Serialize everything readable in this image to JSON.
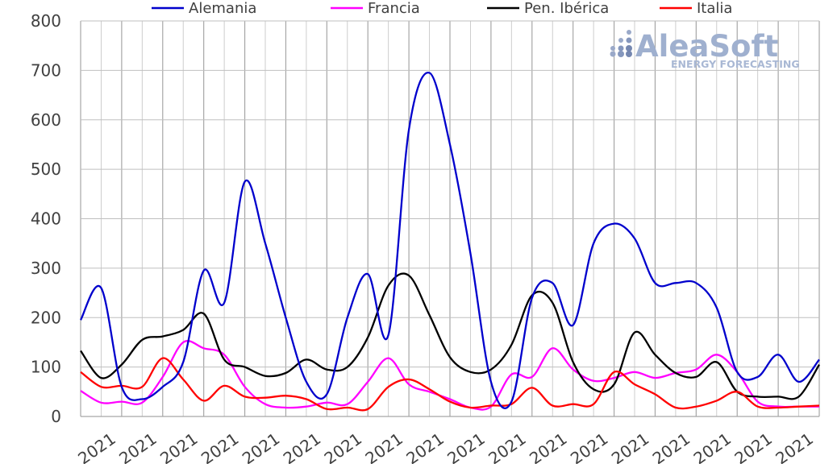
{
  "chart_data": {
    "type": "line",
    "title": "",
    "xlabel": "",
    "ylabel": "",
    "ylim": [
      0,
      800
    ],
    "yticks": [
      0,
      100,
      200,
      300,
      400,
      500,
      600,
      700,
      800
    ],
    "grid": true,
    "legend_position": "top",
    "x_tick_labels": [
      "2021",
      "2021",
      "2021",
      "2021",
      "2021",
      "2021",
      "2021",
      "2021",
      "2021",
      "2021",
      "2021",
      "2021",
      "2021",
      "2021",
      "2021",
      "2021",
      "2021",
      "2021"
    ],
    "series": [
      {
        "name": "Alemania",
        "color": "#0000cc",
        "values": [
          195,
          260,
          60,
          35,
          60,
          110,
          295,
          230,
          475,
          350,
          200,
          70,
          45,
          200,
          288,
          165,
          580,
          695,
          550,
          330,
          70,
          30,
          240,
          270,
          185,
          350,
          390,
          360,
          270,
          270,
          270,
          220,
          90,
          80,
          125,
          70,
          115
        ]
      },
      {
        "name": "Francia",
        "color": "#ff00ff",
        "values": [
          52,
          28,
          30,
          28,
          80,
          150,
          138,
          125,
          60,
          25,
          18,
          20,
          28,
          25,
          70,
          118,
          65,
          50,
          35,
          18,
          20,
          85,
          80,
          138,
          95,
          72,
          78,
          90,
          78,
          88,
          95,
          125,
          90,
          30,
          20,
          20,
          20
        ]
      },
      {
        "name": "Pen. Ibérica",
        "color": "#000000",
        "values": [
          133,
          78,
          105,
          155,
          162,
          175,
          208,
          115,
          100,
          82,
          88,
          115,
          95,
          100,
          160,
          265,
          285,
          205,
          120,
          90,
          95,
          145,
          245,
          230,
          110,
          55,
          65,
          170,
          125,
          88,
          80,
          110,
          50,
          40,
          40,
          40,
          105
        ]
      },
      {
        "name": "Italia",
        "color": "#ff0000",
        "values": [
          90,
          60,
          62,
          60,
          118,
          75,
          32,
          62,
          40,
          38,
          42,
          35,
          15,
          18,
          15,
          60,
          75,
          55,
          30,
          18,
          22,
          25,
          58,
          22,
          25,
          25,
          90,
          65,
          45,
          18,
          20,
          32,
          50,
          20,
          18,
          20,
          22
        ]
      }
    ]
  },
  "logo": {
    "name": "AleaSoft",
    "tagline": "ENERGY FORECASTING"
  }
}
